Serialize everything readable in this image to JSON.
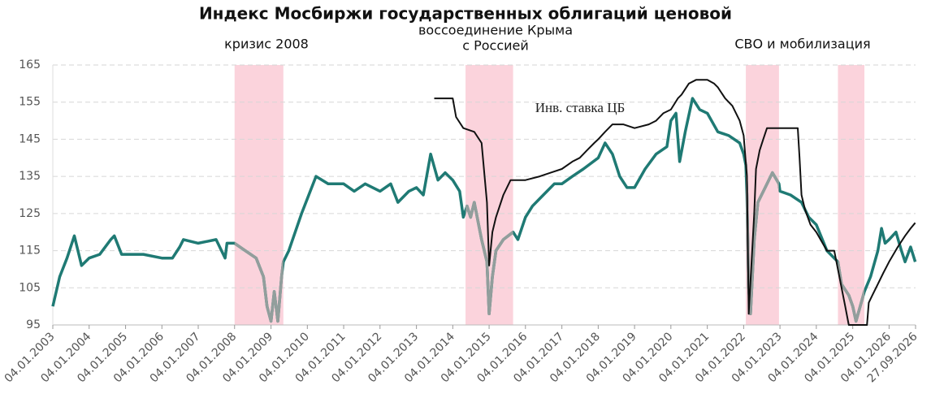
{
  "chart_data": {
    "type": "line",
    "title": "Индекс Мосбиржи государственных облигаций ценовой",
    "ylim": [
      95,
      165
    ],
    "yticks": [
      95,
      105,
      115,
      125,
      135,
      145,
      155,
      165
    ],
    "xlim": [
      "2003-01-04",
      "2026-09-27"
    ],
    "xticks": [
      {
        "value": "2003-01-04",
        "label": "04.01.2003"
      },
      {
        "value": "2004-01-04",
        "label": "04.01.2004"
      },
      {
        "value": "2005-01-04",
        "label": "04.01.2005"
      },
      {
        "value": "2006-01-04",
        "label": "04.01.2006"
      },
      {
        "value": "2007-01-04",
        "label": "04.01.2007"
      },
      {
        "value": "2008-01-04",
        "label": "04.01.2008"
      },
      {
        "value": "2009-01-04",
        "label": "04.01.2009"
      },
      {
        "value": "2010-01-04",
        "label": "04.01.2010"
      },
      {
        "value": "2011-01-04",
        "label": "04.01.2011"
      },
      {
        "value": "2012-01-04",
        "label": "04.01.2012"
      },
      {
        "value": "2013-01-04",
        "label": "04.01.2013"
      },
      {
        "value": "2014-01-04",
        "label": "04.01.2014"
      },
      {
        "value": "2015-01-04",
        "label": "04.01.2015"
      },
      {
        "value": "2016-01-04",
        "label": "04.01.2016"
      },
      {
        "value": "2017-01-04",
        "label": "04.01.2017"
      },
      {
        "value": "2018-01-04",
        "label": "04.01.2018"
      },
      {
        "value": "2019-01-04",
        "label": "04.01.2019"
      },
      {
        "value": "2020-01-04",
        "label": "04.01.2020"
      },
      {
        "value": "2021-01-04",
        "label": "04.01.2021"
      },
      {
        "value": "2022-01-04",
        "label": "04.01.2022"
      },
      {
        "value": "2023-01-04",
        "label": "04.01.2023"
      },
      {
        "value": "2024-01-04",
        "label": "04.01.2024"
      },
      {
        "value": "2025-01-04",
        "label": "04.01.2025"
      },
      {
        "value": "2026-01-04",
        "label": "04.01.2026"
      },
      {
        "value": "2026-09-27",
        "label": "27.09.2026"
      }
    ],
    "grid": true,
    "shaded_periods": [
      {
        "start": "2008-01-04",
        "end": "2009-05-08",
        "label": [
          "кризис 2008"
        ]
      },
      {
        "start": "2014-05-12",
        "end": "2015-09-02",
        "label": [
          "воссоединение Крыма",
          "с Россией"
        ]
      },
      {
        "start": "2022-01-26",
        "end": "2022-12-25",
        "label": [
          "СВО и мобилизация"
        ]
      },
      {
        "start": "2024-08-08",
        "end": "2025-05-01"
      }
    ],
    "shade_color": "#fbd3dc",
    "series": [
      {
        "color": "#1f7a74",
        "highlight_color": "#929e9c",
        "x": [
          "2003-01-04",
          "2003-03-14",
          "2003-05-27",
          "2003-08-08",
          "2003-10-20",
          "2004-01-04",
          "2004-04-20",
          "2004-08-08",
          "2004-09-13",
          "2004-11-25",
          "2005-01-04",
          "2005-07-02",
          "2006-01-04",
          "2006-04-20",
          "2006-07-02",
          "2006-08-08",
          "2007-01-04",
          "2007-07-02",
          "2007-10-01",
          "2007-10-20",
          "2008-01-04",
          "2008-04-20",
          "2008-08-08",
          "2008-10-20",
          "2008-11-25",
          "2009-01-04",
          "2009-02-06",
          "2009-03-14",
          "2009-04-20",
          "2009-05-08",
          "2009-07-02",
          "2009-11-07",
          "2010-04-01",
          "2010-08-01",
          "2011-01-04",
          "2011-04-20",
          "2011-08-08",
          "2012-01-04",
          "2012-04-20",
          "2012-07-02",
          "2012-10-20",
          "2013-01-04",
          "2013-03-14",
          "2013-05-27",
          "2013-08-08",
          "2013-10-20",
          "2014-01-04",
          "2014-03-14",
          "2014-04-20",
          "2014-05-27",
          "2014-07-02",
          "2014-08-08",
          "2014-10-20",
          "2014-12-13",
          "2015-01-04",
          "2015-02-06",
          "2015-03-14",
          "2015-05-27",
          "2015-09-02",
          "2015-10-20",
          "2016-01-04",
          "2016-03-14",
          "2016-07-02",
          "2016-10-20",
          "2017-01-04",
          "2017-04-20",
          "2017-08-08",
          "2018-01-04",
          "2018-03-14",
          "2018-05-27",
          "2018-08-08",
          "2018-10-20",
          "2019-01-04",
          "2019-04-20",
          "2019-08-08",
          "2019-11-25",
          "2020-01-04",
          "2020-02-24",
          "2020-04-01",
          "2020-05-27",
          "2020-08-08",
          "2020-10-20",
          "2021-01-04",
          "2021-04-20",
          "2021-08-08",
          "2021-11-25",
          "2022-01-04",
          "2022-01-26",
          "2022-02-06",
          "2022-02-24",
          "2022-03-14",
          "2022-04-20",
          "2022-05-27",
          "2022-08-08",
          "2022-10-20",
          "2022-12-25",
          "2023-01-04",
          "2023-04-20",
          "2023-08-08",
          "2023-10-20",
          "2024-01-04",
          "2024-04-20",
          "2024-08-08",
          "2024-09-13",
          "2024-11-25",
          "2025-01-04",
          "2025-02-06",
          "2025-05-01",
          "2025-07-02",
          "2025-09-13",
          "2025-10-20",
          "2025-11-25",
          "2026-01-04",
          "2026-03-14",
          "2026-05-08",
          "2026-06-14",
          "2026-08-08",
          "2026-09-24"
        ],
        "values": [
          100,
          108,
          113,
          119,
          111,
          113,
          114,
          118,
          119,
          114,
          114,
          114,
          113,
          113,
          116,
          118,
          117,
          118,
          113,
          117,
          117,
          115,
          113,
          108,
          100,
          96,
          104,
          96,
          108,
          112,
          115,
          125,
          135,
          133,
          133,
          131,
          133,
          131,
          133,
          128,
          131,
          132,
          130,
          141,
          134,
          136,
          134,
          131,
          124,
          127,
          124,
          128,
          118,
          112,
          98,
          108,
          115,
          118,
          120,
          118,
          124,
          127,
          130,
          133,
          133,
          135,
          137,
          140,
          144,
          141,
          135,
          132,
          132,
          137,
          141,
          143,
          150,
          152,
          139,
          147,
          156,
          153,
          152,
          147,
          146,
          144,
          141,
          138,
          130,
          105,
          98,
          118,
          128,
          132,
          136,
          133,
          131,
          130,
          128,
          124,
          122,
          115,
          112,
          106,
          103,
          100,
          96,
          104,
          108,
          115,
          121,
          117,
          118,
          120,
          115,
          112,
          116,
          112
        ]
      },
      {
        "name": "Инв. ставка ЦБ",
        "color": "#111111",
        "x": [
          "2013-07-02",
          "2014-01-04",
          "2014-02-06",
          "2014-04-20",
          "2014-08-08",
          "2014-10-20",
          "2014-12-13",
          "2015-01-04",
          "2015-02-06",
          "2015-03-14",
          "2015-05-27",
          "2015-08-08",
          "2016-01-04",
          "2016-05-27",
          "2016-09-13",
          "2017-01-04",
          "2017-04-20",
          "2017-07-02",
          "2017-09-13",
          "2017-11-25",
          "2018-01-04",
          "2018-03-14",
          "2018-05-27",
          "2018-09-13",
          "2019-01-04",
          "2019-05-27",
          "2019-08-08",
          "2019-10-20",
          "2020-01-04",
          "2020-03-14",
          "2020-04-20",
          "2020-07-02",
          "2020-09-13",
          "2021-01-04",
          "2021-03-14",
          "2021-04-20",
          "2021-07-02",
          "2021-09-13",
          "2021-11-25",
          "2022-01-04",
          "2022-02-06",
          "2022-02-24",
          "2022-04-20",
          "2022-05-08",
          "2022-06-14",
          "2022-07-20",
          "2022-08-26",
          "2023-07-02",
          "2023-07-20",
          "2023-08-08",
          "2023-09-13",
          "2023-11-07",
          "2024-01-04",
          "2024-04-20",
          "2024-07-02",
          "2024-08-08",
          "2024-10-20",
          "2024-11-25",
          "2025-05-27",
          "2025-06-14",
          "2025-07-20",
          "2025-09-13",
          "2025-11-07",
          "2026-01-04",
          "2026-04-01",
          "2026-06-14",
          "2026-08-08",
          "2026-09-24"
        ],
        "values": [
          156,
          156,
          151,
          148,
          147,
          144,
          128,
          111,
          120,
          124,
          130,
          134,
          134,
          135,
          136,
          137,
          139,
          140,
          142,
          144,
          145,
          147,
          149,
          149,
          148,
          149,
          150,
          152,
          153,
          156,
          157,
          160,
          161,
          161,
          160,
          159,
          156,
          154,
          150,
          146,
          135,
          98,
          125,
          137,
          142,
          145,
          148,
          148,
          140,
          130,
          126,
          122,
          120,
          115,
          115,
          110,
          100,
          95,
          95,
          101,
          103,
          106,
          109,
          112,
          116,
          119,
          121,
          122.5
        ]
      }
    ]
  }
}
